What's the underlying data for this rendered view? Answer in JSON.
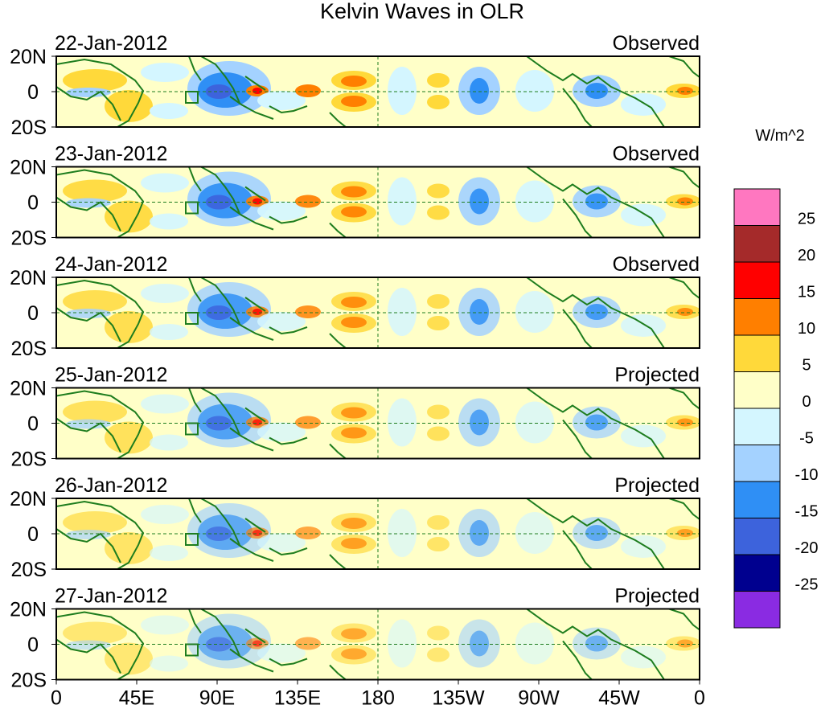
{
  "title": "Kelvin Waves in OLR",
  "units": "W/m^2",
  "panels": [
    {
      "date": "22-Jan-2012",
      "status": "Observed"
    },
    {
      "date": "23-Jan-2012",
      "status": "Observed"
    },
    {
      "date": "24-Jan-2012",
      "status": "Observed"
    },
    {
      "date": "25-Jan-2012",
      "status": "Projected"
    },
    {
      "date": "26-Jan-2012",
      "status": "Projected"
    },
    {
      "date": "27-Jan-2012",
      "status": "Projected"
    }
  ],
  "lat_labels": [
    "20N",
    "0",
    "20S"
  ],
  "lon_labels": [
    "0",
    "45E",
    "90E",
    "135E",
    "180",
    "135W",
    "90W",
    "45W",
    "0"
  ],
  "colorbar": {
    "labels": [
      "25",
      "20",
      "15",
      "10",
      "5",
      "0",
      "-5",
      "-10",
      "-15",
      "-20",
      "-25"
    ],
    "colors": [
      "#ff77c0",
      "#a52a2a",
      "#ff0000",
      "#ff7f00",
      "#ffd93a",
      "#ffffc8",
      "#d4f6ff",
      "#a4d2ff",
      "#2f8ff5",
      "#3d63dc",
      "#00008f",
      "#8a2be2"
    ]
  },
  "palette": {
    "coast": "#1e7d1e",
    "guide": "#1e7d1e"
  }
}
